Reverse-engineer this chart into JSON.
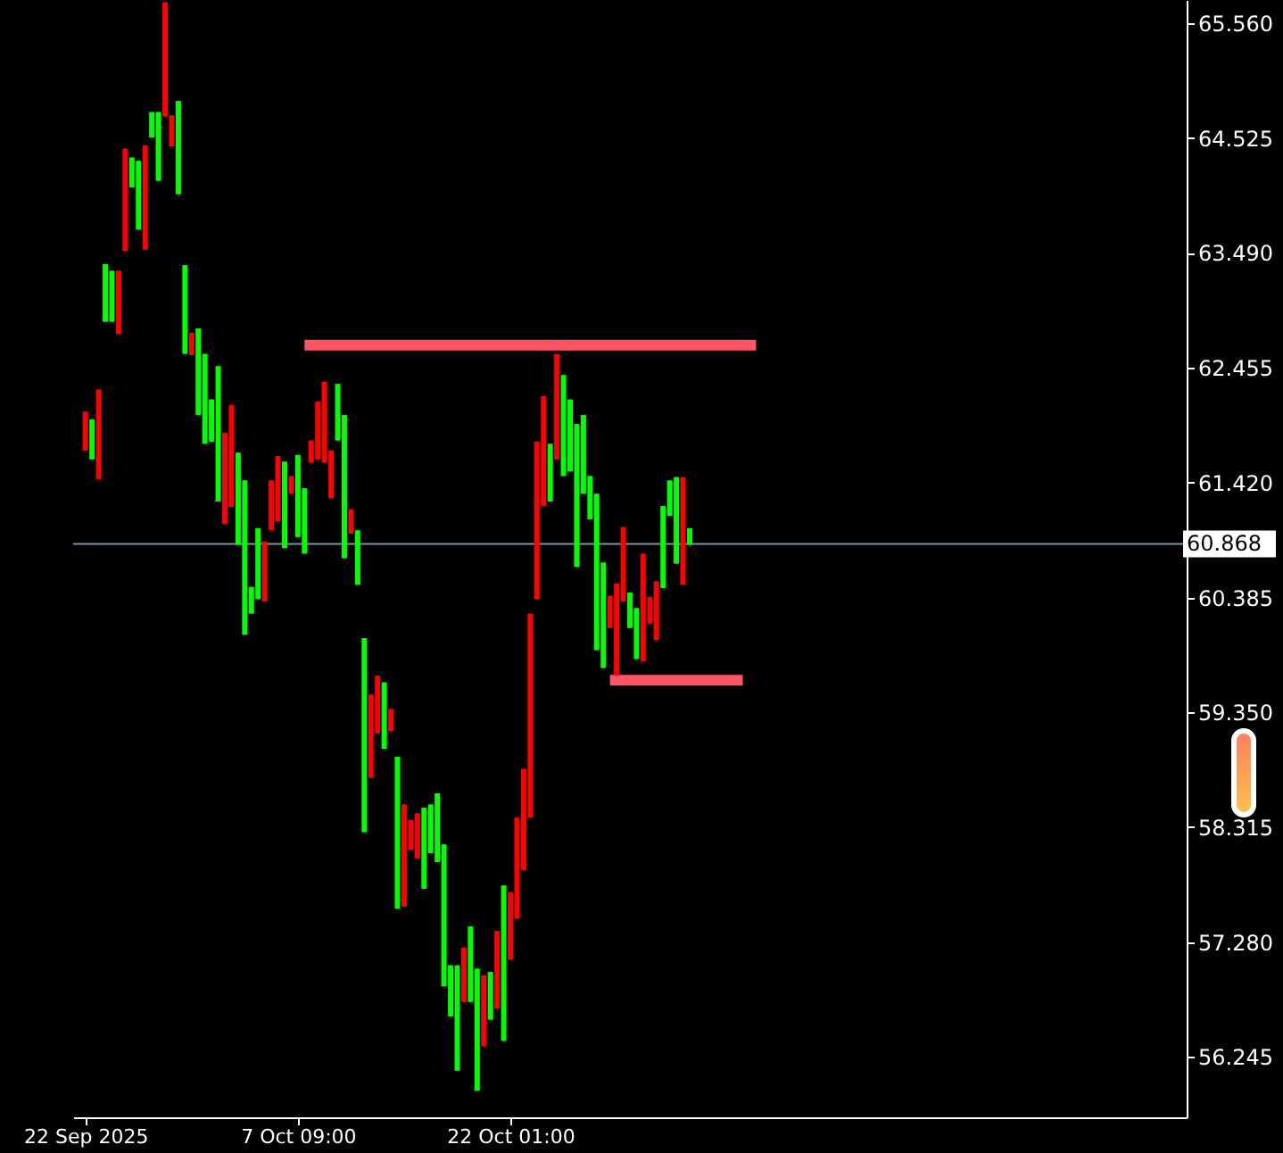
{
  "chart_data": {
    "type": "candlestick",
    "categories": [
      "22 Sep 2025",
      null,
      null,
      null,
      null,
      null,
      null,
      null,
      null,
      null,
      null,
      null,
      null,
      null,
      null,
      null,
      null,
      null,
      null,
      null,
      null,
      null,
      null,
      null,
      null,
      null,
      null,
      null,
      null,
      null,
      null,
      null,
      "7 Oct 09:00",
      null,
      null,
      null,
      null,
      null,
      null,
      null,
      null,
      null,
      null,
      null,
      null,
      null,
      null,
      null,
      null,
      null,
      null,
      null,
      null,
      null,
      null,
      null,
      null,
      null,
      null,
      null,
      null,
      null,
      null,
      null,
      "22 Oct 01:00",
      null,
      null,
      null,
      null,
      null,
      null,
      null,
      null,
      null,
      null,
      null,
      null,
      null,
      null,
      null,
      null,
      null,
      null,
      null,
      null,
      null,
      null,
      null,
      null,
      null,
      null,
      null,
      null,
      null,
      null,
      null,
      null,
      null,
      null,
      null,
      null,
      null,
      null,
      null,
      null,
      null,
      null,
      null,
      null,
      null,
      null,
      null,
      null,
      null,
      null,
      null,
      null,
      null,
      null,
      null,
      null,
      null,
      null,
      null,
      null,
      null,
      null,
      null,
      null,
      null,
      null,
      null,
      null,
      null,
      null,
      null,
      null,
      null,
      null,
      null,
      null,
      null,
      null,
      null,
      null,
      null,
      null,
      null,
      null,
      null,
      null,
      null,
      null,
      null,
      null,
      null,
      null,
      null,
      null,
      null,
      null,
      null,
      null,
      null,
      null
    ],
    "ohlc": [
      [
        62.06,
        62.06,
        61.71,
        61.71
      ],
      [
        61.63,
        61.99,
        61.63,
        61.99
      ],
      [
        62.26,
        62.26,
        61.45,
        61.45
      ],
      [
        62.87,
        63.39,
        62.87,
        63.39
      ],
      [
        62.87,
        63.33,
        62.87,
        63.33
      ],
      [
        63.33,
        63.33,
        62.76,
        62.76
      ],
      [
        64.43,
        64.43,
        63.51,
        63.51
      ],
      [
        64.08,
        64.35,
        64.08,
        64.35
      ],
      [
        63.7,
        64.32,
        63.7,
        64.32
      ],
      [
        64.46,
        64.46,
        63.52,
        63.52
      ],
      [
        64.53,
        64.76,
        64.53,
        64.76
      ],
      [
        64.14,
        64.76,
        64.14,
        64.76
      ],
      [
        65.75,
        65.75,
        64.72,
        64.72
      ],
      [
        64.73,
        64.73,
        64.45,
        64.45
      ],
      [
        64.02,
        64.86,
        64.02,
        64.86
      ],
      [
        62.58,
        63.38,
        62.58,
        63.38
      ],
      [
        62.77,
        62.77,
        62.57,
        62.57
      ],
      [
        62.03,
        62.81,
        62.03,
        62.81
      ],
      [
        61.77,
        62.58,
        61.77,
        62.58
      ],
      [
        61.79,
        62.17,
        61.79,
        62.17
      ],
      [
        61.25,
        62.47,
        61.25,
        62.47
      ],
      [
        61.87,
        61.87,
        61.05,
        61.05
      ],
      [
        62.12,
        62.12,
        61.2,
        61.2
      ],
      [
        60.86,
        61.69,
        60.86,
        61.69
      ],
      [
        60.05,
        61.44,
        60.05,
        61.44
      ],
      [
        60.24,
        60.48,
        60.24,
        60.48
      ],
      [
        60.37,
        61.01,
        60.37,
        61.01
      ],
      [
        60.89,
        60.89,
        60.35,
        60.35
      ],
      [
        61.44,
        61.44,
        60.99,
        60.99
      ],
      [
        61.66,
        61.66,
        61.07,
        61.07
      ],
      [
        60.83,
        61.61,
        60.83,
        61.61
      ],
      [
        61.48,
        61.48,
        61.32,
        61.32
      ],
      [
        60.93,
        61.67,
        60.93,
        61.67
      ],
      [
        60.78,
        61.37,
        60.78,
        61.37
      ],
      [
        61.8,
        61.8,
        61.6,
        61.6
      ],
      [
        62.15,
        62.15,
        61.63,
        61.63
      ],
      [
        62.33,
        62.33,
        61.6,
        61.6
      ],
      [
        61.71,
        61.71,
        61.28,
        61.28
      ],
      [
        61.8,
        62.31,
        61.8,
        62.31
      ],
      [
        60.74,
        62.03,
        60.74,
        62.03
      ],
      [
        61.18,
        61.18,
        60.96,
        60.96
      ],
      [
        60.5,
        60.99,
        60.5,
        60.99
      ],
      [
        58.27,
        60.02,
        58.27,
        60.02
      ],
      [
        59.51,
        59.51,
        58.76,
        58.76
      ],
      [
        59.68,
        59.68,
        59.16,
        59.16
      ],
      [
        59.02,
        59.62,
        59.02,
        59.62
      ],
      [
        59.38,
        59.38,
        59.18,
        59.18
      ],
      [
        57.58,
        58.95,
        57.58,
        58.95
      ],
      [
        58.52,
        58.52,
        57.6,
        57.6
      ],
      [
        58.38,
        58.38,
        58.11,
        58.11
      ],
      [
        58.44,
        58.44,
        58.03,
        58.03
      ],
      [
        57.76,
        58.49,
        57.76,
        58.49
      ],
      [
        58.08,
        58.52,
        58.08,
        58.52
      ],
      [
        58.0,
        58.62,
        58.0,
        58.62
      ],
      [
        56.88,
        58.16,
        56.88,
        58.16
      ],
      [
        56.61,
        57.07,
        56.61,
        57.07
      ],
      [
        56.12,
        57.07,
        56.12,
        57.07
      ],
      [
        57.23,
        57.23,
        56.74,
        56.74
      ],
      [
        56.74,
        57.42,
        56.74,
        57.42
      ],
      [
        55.94,
        57.04,
        55.94,
        57.04
      ],
      [
        56.98,
        56.98,
        56.34,
        56.34
      ],
      [
        56.58,
        57.01,
        56.58,
        57.01
      ],
      [
        57.38,
        57.38,
        56.68,
        56.68
      ],
      [
        56.39,
        57.79,
        56.39,
        57.79
      ],
      [
        57.73,
        57.73,
        57.12,
        57.12
      ],
      [
        58.4,
        58.4,
        57.49,
        57.49
      ],
      [
        58.84,
        58.84,
        57.93,
        57.93
      ],
      [
        60.24,
        60.24,
        58.4,
        58.4
      ],
      [
        61.79,
        61.79,
        60.37,
        60.37
      ],
      [
        62.2,
        62.2,
        61.21,
        61.21
      ],
      [
        61.25,
        61.77,
        61.25,
        61.77
      ],
      [
        62.58,
        62.58,
        61.63,
        61.63
      ],
      [
        61.48,
        62.39,
        61.48,
        62.39
      ],
      [
        61.52,
        62.17,
        61.52,
        62.17
      ],
      [
        60.66,
        61.95,
        60.66,
        61.95
      ],
      [
        61.32,
        62.03,
        61.32,
        62.03
      ],
      [
        61.09,
        61.48,
        61.09,
        61.48
      ],
      [
        59.91,
        61.32,
        59.91,
        61.32
      ],
      [
        59.75,
        60.7,
        59.75,
        60.7
      ],
      [
        60.4,
        60.4,
        60.11,
        60.11
      ],
      [
        60.51,
        60.51,
        59.68,
        59.68
      ],
      [
        61.02,
        61.02,
        60.35,
        60.35
      ],
      [
        60.11,
        60.43,
        60.11,
        60.43
      ],
      [
        59.83,
        60.29,
        59.83,
        60.29
      ],
      [
        60.78,
        60.78,
        59.81,
        59.81
      ],
      [
        60.39,
        60.39,
        60.15,
        60.15
      ],
      [
        60.53,
        60.53,
        60.0,
        60.0
      ],
      [
        60.47,
        61.21,
        60.47,
        61.21
      ],
      [
        61.12,
        61.44,
        61.12,
        61.44
      ],
      [
        60.69,
        61.47,
        60.69,
        61.47
      ],
      [
        61.47,
        61.47,
        60.5,
        60.5
      ],
      [
        60.86,
        61.01,
        60.86,
        61.01
      ],
      null,
      null,
      null,
      null,
      null,
      null,
      null,
      null,
      null,
      null,
      null,
      null,
      null,
      null,
      null,
      null,
      null,
      null,
      null,
      null,
      null,
      null,
      null,
      null,
      null,
      null,
      null,
      null,
      null,
      null,
      null,
      null,
      null,
      null,
      null,
      null,
      null,
      null,
      null,
      null,
      null,
      null,
      null,
      null,
      null,
      null,
      null,
      null,
      null,
      null,
      null,
      null,
      null,
      null,
      null,
      null,
      null,
      null,
      null,
      null,
      null,
      null,
      null,
      null,
      null,
      null,
      null,
      null,
      null,
      null,
      null,
      null,
      null
    ],
    "colors": [
      "#ff0000",
      "#00ff00",
      "#ff0000",
      "#00ff00",
      "#00ff00",
      "#ff0000",
      "#ff0000",
      "#00ff00",
      "#00ff00",
      "#ff0000",
      "#00ff00",
      "#00ff00",
      "#ff0000",
      "#ff0000",
      "#00ff00",
      "#00ff00",
      "#ff0000",
      "#00ff00",
      "#00ff00",
      "#00ff00",
      "#00ff00",
      "#ff0000",
      "#ff0000",
      "#00ff00",
      "#00ff00",
      "#00ff00",
      "#00ff00",
      "#ff0000",
      "#ff0000",
      "#ff0000",
      "#00ff00",
      "#ff0000",
      "#00ff00",
      "#00ff00",
      "#ff0000",
      "#ff0000",
      "#ff0000",
      "#ff0000",
      "#00ff00",
      "#00ff00",
      "#ff0000",
      "#00ff00",
      "#00ff00",
      "#ff0000",
      "#ff0000",
      "#00ff00",
      "#ff0000",
      "#00ff00",
      "#ff0000",
      "#ff0000",
      "#ff0000",
      "#00ff00",
      "#00ff00",
      "#00ff00",
      "#00ff00",
      "#00ff00",
      "#00ff00",
      "#ff0000",
      "#00ff00",
      "#00ff00",
      "#ff0000",
      "#00ff00",
      "#ff0000",
      "#00ff00",
      "#ff0000",
      "#ff0000",
      "#ff0000",
      "#ff0000",
      "#ff0000",
      "#ff0000",
      "#00ff00",
      "#ff0000",
      "#00ff00",
      "#00ff00",
      "#00ff00",
      "#00ff00",
      "#00ff00",
      "#00ff00",
      "#00ff00",
      "#ff0000",
      "#ff0000",
      "#ff0000",
      "#00ff00",
      "#00ff00",
      "#ff0000",
      "#ff0000",
      "#ff0000",
      "#00ff00",
      "#00ff00",
      "#00ff00",
      "#ff0000",
      "#00ff00",
      null,
      null,
      null,
      null,
      null,
      null,
      null,
      null,
      null,
      null,
      null,
      null,
      null,
      null,
      null,
      null,
      null,
      null,
      null,
      null,
      null,
      null,
      null,
      null,
      null,
      null,
      null,
      null,
      null,
      null,
      null,
      null,
      null,
      null,
      null,
      null,
      null,
      null,
      null,
      null,
      null,
      null,
      null,
      null,
      null,
      null,
      null,
      null,
      null,
      null,
      null,
      null,
      null,
      null,
      null,
      null,
      null,
      null,
      null,
      null,
      null,
      null,
      null,
      null,
      null,
      null,
      null,
      null,
      null,
      null,
      null,
      null,
      null
    ],
    "series": [
      {
        "type": "line",
        "color": "#ff5566",
        "values": [
          null,
          null,
          null,
          null,
          null,
          null,
          null,
          null,
          null,
          null,
          null,
          null,
          null,
          null,
          null,
          null,
          null,
          null,
          null,
          null,
          null,
          null,
          null,
          null,
          null,
          null,
          null,
          null,
          null,
          null,
          null,
          null,
          null,
          62.66,
          null,
          null,
          null,
          null,
          null,
          null,
          null,
          null,
          null,
          null,
          null,
          null,
          null,
          null,
          null,
          null,
          null,
          null,
          null,
          null,
          null,
          null,
          null,
          null,
          null,
          null,
          null,
          null,
          null,
          null,
          null,
          null,
          null,
          null,
          null,
          null,
          null,
          null,
          null,
          null,
          null,
          null,
          null,
          null,
          null,
          null,
          null,
          null,
          null,
          null,
          null,
          null,
          null,
          null,
          null,
          null,
          null,
          null,
          null,
          null,
          null,
          null,
          null,
          null,
          null,
          null,
          null,
          62.66,
          null,
          null,
          null,
          null,
          null,
          null,
          null,
          null,
          null,
          null,
          null,
          null,
          null,
          null,
          null,
          null,
          null,
          null,
          null,
          null,
          null,
          null,
          null,
          null,
          null,
          null,
          null,
          null,
          null,
          null,
          null,
          null,
          null,
          null,
          null,
          null,
          null,
          null,
          null,
          null,
          null,
          null,
          null,
          null,
          null,
          null,
          null,
          null,
          null,
          null,
          null,
          null,
          null,
          null,
          null,
          null,
          null,
          null,
          null,
          null,
          null,
          null,
          null
        ]
      },
      {
        "type": "line",
        "color": "#ff5566",
        "values": [
          null,
          null,
          null,
          null,
          null,
          null,
          null,
          null,
          null,
          null,
          null,
          null,
          null,
          null,
          null,
          null,
          null,
          null,
          null,
          null,
          null,
          null,
          null,
          null,
          null,
          null,
          null,
          null,
          null,
          null,
          null,
          null,
          null,
          null,
          null,
          null,
          null,
          null,
          null,
          null,
          null,
          null,
          null,
          null,
          null,
          null,
          null,
          null,
          null,
          null,
          null,
          null,
          null,
          null,
          null,
          null,
          null,
          null,
          null,
          null,
          null,
          null,
          null,
          null,
          null,
          null,
          null,
          null,
          null,
          null,
          null,
          null,
          null,
          null,
          null,
          null,
          null,
          null,
          null,
          59.64,
          null,
          null,
          null,
          null,
          null,
          null,
          null,
          null,
          null,
          null,
          null,
          null,
          null,
          null,
          null,
          null,
          null,
          null,
          null,
          59.64,
          null,
          null,
          null,
          null,
          null,
          null,
          null,
          null,
          null,
          null,
          null,
          null,
          null,
          null,
          null,
          null,
          null,
          null,
          null,
          null,
          null,
          null,
          null,
          null,
          null,
          null,
          null,
          null,
          null,
          null,
          null,
          null,
          null,
          null,
          null,
          null,
          null,
          null,
          null,
          null,
          null,
          null,
          null,
          null,
          null,
          null,
          null,
          null,
          null,
          null,
          null,
          null,
          null,
          null,
          null,
          null,
          null,
          null,
          null,
          null,
          null,
          null,
          null,
          null,
          null
        ]
      }
    ],
    "ref_lines": [
      {
        "axis": "y",
        "value": 60.868,
        "label": "60.868",
        "color": "#8090a0"
      }
    ],
    "ylim": [
      55.7,
      65.77
    ],
    "yticks": [
      {
        "value": 65.56,
        "label": "65.560"
      },
      {
        "value": 64.525,
        "label": "64.525"
      },
      {
        "value": 63.49,
        "label": "63.490"
      },
      {
        "value": 62.455,
        "label": "62.455"
      },
      {
        "value": 61.42,
        "label": "61.420"
      },
      {
        "value": 60.385,
        "label": "60.385"
      },
      {
        "value": 59.35,
        "label": "59.350"
      },
      {
        "value": 58.315,
        "label": "58.315"
      },
      {
        "value": 57.28,
        "label": "57.280"
      },
      {
        "value": 56.245,
        "label": "56.245"
      }
    ]
  }
}
